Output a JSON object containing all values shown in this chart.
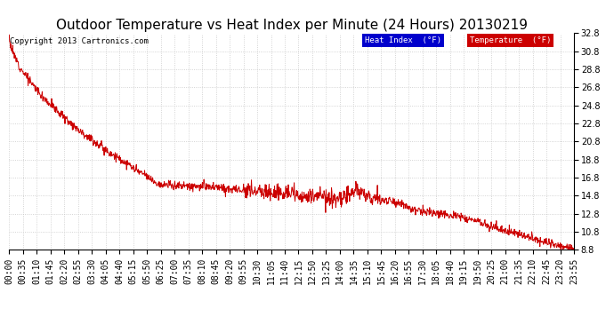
{
  "title": "Outdoor Temperature vs Heat Index per Minute (24 Hours) 20130219",
  "copyright_text": "Copyright 2013 Cartronics.com",
  "legend_heat_index_label": "Heat Index  (°F)",
  "legend_temp_label": "Temperature  (°F)",
  "y_min": 8.8,
  "y_max": 32.8,
  "y_tick_step": 2.0,
  "background_color": "#ffffff",
  "plot_bg_color": "#ffffff",
  "grid_color": "#c8c8c8",
  "line_color": "#cc0000",
  "legend_heat_index_bg": "#0000cc",
  "legend_temp_bg": "#cc0000",
  "title_fontsize": 11,
  "tick_label_fontsize": 7,
  "copyright_fontsize": 6.5,
  "x_tick_labels": [
    "00:00",
    "00:35",
    "01:10",
    "01:45",
    "02:20",
    "02:55",
    "03:30",
    "04:05",
    "04:40",
    "05:15",
    "05:50",
    "06:25",
    "07:00",
    "07:35",
    "08:10",
    "08:45",
    "09:20",
    "09:55",
    "10:30",
    "11:05",
    "11:40",
    "12:15",
    "12:50",
    "13:25",
    "14:00",
    "14:35",
    "15:10",
    "15:45",
    "16:20",
    "16:55",
    "17:30",
    "18:05",
    "18:40",
    "19:15",
    "19:50",
    "20:25",
    "21:00",
    "21:35",
    "22:10",
    "22:45",
    "23:20",
    "23:55"
  ],
  "num_points": 1440,
  "noise_scale": 0.25
}
